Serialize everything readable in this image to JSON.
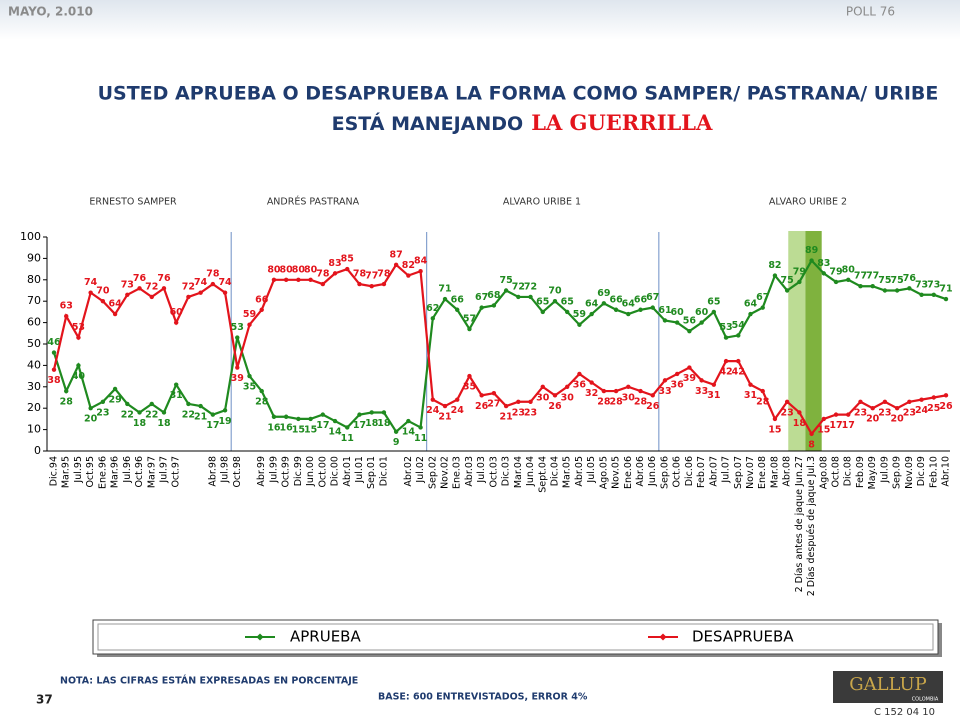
{
  "header": {
    "date": "MAYO, 2.010",
    "poll": "POLL 76"
  },
  "chart_data": {
    "type": "line",
    "title": "USTED APRUEBA O DESAPRUEBA LA FORMA COMO SAMPER/ PASTRANA/ URIBE",
    "title_line2": "ESTÁ MANEJANDO",
    "title_highlight": "LA GUERRILLA",
    "period_labels": [
      "ERNESTO SAMPER",
      "ANDRÉS  PASTRANA",
      "ALVARO URIBE 1",
      "ALVARO URIBE 2"
    ],
    "categories": [
      "Dic.94",
      "Mar.95",
      "Jul.95",
      "Oct.95",
      "Ene.96",
      "Mar.96",
      "Jul.96",
      "Oct.96",
      "Mar.97",
      "Jul.97",
      "Oct.97",
      null,
      null,
      "Abr.98",
      "Jul.98",
      "Oct.98",
      null,
      "Abr.99",
      "Jul.99",
      "Oct.99",
      "Dic.99",
      "Jun.00",
      "Oct.00",
      "Dic.00",
      "Abr.01",
      "Jul.01",
      "Sep.01",
      "Dic.01",
      null,
      "Abr.02",
      "Jul.02",
      "Sep.02",
      "Nov.02",
      "Ene.03",
      "Abr.03",
      "Jul.03",
      "Oct.03",
      "Dic.03",
      "Mar.04",
      "Jun.04",
      "Sept.04",
      "Dic.04",
      "Mar.05",
      "Abr.05",
      "Jul.05",
      "Ago.05",
      "Nov.05",
      "Ene.06",
      "Abr.06",
      "Jun.06",
      "Sep.06",
      "Oct.06",
      "Dic.06",
      "Feb.07",
      "Abr.07",
      "Jul.07",
      "Sep.07",
      "Nov.07",
      "Ene.08",
      "Mar.08",
      "Abr.08",
      "2 Días antes de jaque Jun.27",
      "2 Días después de jaque Jul.3",
      "Ago.08",
      "Oct.08",
      "Dic.08",
      "Feb.09",
      "May.09",
      "Jul.09",
      "Sep.09",
      "Nov.09",
      "Dic.09",
      "Feb.10",
      "Abr.10"
    ],
    "series": [
      {
        "name": "APRUEBA",
        "color": "#1f8a1f",
        "values": [
          46,
          28,
          40,
          20,
          23,
          29,
          22,
          18,
          22,
          18,
          31,
          22,
          21,
          17,
          19,
          53,
          35,
          28,
          16,
          16,
          15,
          15,
          17,
          14,
          11,
          17,
          18,
          18,
          9,
          14,
          11,
          62,
          71,
          66,
          57,
          67,
          68,
          75,
          72,
          72,
          65,
          70,
          65,
          59,
          64,
          69,
          66,
          64,
          66,
          67,
          61,
          60,
          56,
          60,
          65,
          53,
          54,
          64,
          67,
          82,
          75,
          79,
          89,
          83,
          79,
          80,
          77,
          77,
          75,
          75,
          76,
          73,
          73,
          71
        ]
      },
      {
        "name": "DESAPRUEBA",
        "color": "#e3141c",
        "values": [
          38,
          63,
          53,
          74,
          70,
          64,
          73,
          76,
          72,
          76,
          60,
          72,
          74,
          78,
          74,
          39,
          59,
          66,
          80,
          80,
          80,
          80,
          78,
          83,
          85,
          78,
          77,
          78,
          87,
          82,
          84,
          24,
          21,
          24,
          35,
          26,
          27,
          21,
          23,
          23,
          30,
          26,
          30,
          36,
          32,
          28,
          28,
          30,
          28,
          26,
          33,
          36,
          39,
          33,
          31,
          42,
          42,
          31,
          28,
          15,
          23,
          18,
          8,
          15,
          17,
          17,
          23,
          20,
          23,
          20,
          23,
          24,
          25,
          26
        ]
      }
    ],
    "ylim": [
      0,
      100
    ],
    "yticks": [
      0,
      10,
      20,
      30,
      40,
      50,
      60,
      70,
      80,
      90,
      100
    ]
  },
  "note": "NOTA: LAS CIFRAS ESTÁN EXPRESADAS EN PORCENTAJE",
  "base": "BASE: 600 ENTREVISTADOS, ERROR 4%",
  "page_number": "37",
  "logo": "GALLUP",
  "logo_sub": "COLOMBIA",
  "code": "C 152 04 10"
}
